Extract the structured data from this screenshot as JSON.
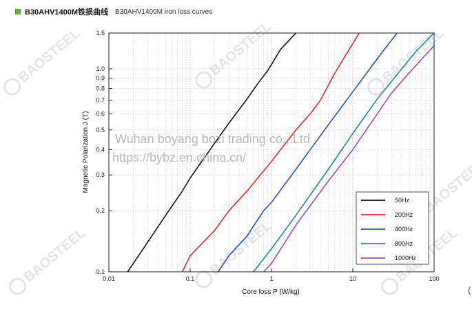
{
  "header": {
    "title": "B30AHV1400M铁损曲线",
    "subtitle": "B30AHV1400M iron loss curves",
    "accent_color": "#5cb531"
  },
  "watermark": {
    "brand": "BAOSTEEL",
    "line1": "Wuhan boyang bozi trading co., Ltd",
    "line2": "https://bybz.en.china.cn/"
  },
  "edge_text": "(",
  "chart_data": {
    "type": "line",
    "title": "",
    "xlabel": "Core  loss P (W/kg)",
    "ylabel": "Magnetic Polarization J (T)",
    "xscale": "log",
    "yscale": "log",
    "xlim": [
      0.01,
      100
    ],
    "ylim": [
      0.1,
      1.5
    ],
    "grid": true,
    "legend_position": "bottom-right",
    "x_ticks": [
      {
        "value": 0.01,
        "label": "0.01"
      },
      {
        "value": 0.1,
        "label": "0.1"
      },
      {
        "value": 1,
        "label": "1"
      },
      {
        "value": 10,
        "label": "10"
      },
      {
        "value": 100,
        "label": "100"
      }
    ],
    "y_ticks": [
      {
        "value": 0.1,
        "label": "0.1"
      },
      {
        "value": 0.2,
        "label": "0.2"
      },
      {
        "value": 0.3,
        "label": "0.3"
      },
      {
        "value": 0.4,
        "label": "0.4"
      },
      {
        "value": 0.5,
        "label": "0.5"
      },
      {
        "value": 0.6,
        "label": "0.6"
      },
      {
        "value": 0.7,
        "label": "0.7"
      },
      {
        "value": 0.8,
        "label": "0.8"
      },
      {
        "value": 0.9,
        "label": "0.9"
      },
      {
        "value": 1.0,
        "label": "1.0"
      },
      {
        "value": 1.5,
        "label": "1.5"
      }
    ],
    "series": [
      {
        "name": "50Hz",
        "color": "#111111",
        "x": [
          0.017,
          0.02,
          0.03,
          0.05,
          0.08,
          0.1,
          0.2,
          0.3,
          0.5,
          0.7,
          0.9,
          1.0,
          1.3,
          2.0
        ],
        "y": [
          0.1,
          0.11,
          0.14,
          0.19,
          0.25,
          0.29,
          0.43,
          0.54,
          0.71,
          0.86,
          0.98,
          1.05,
          1.25,
          1.5
        ]
      },
      {
        "name": "200Hz",
        "color": "#e32b2b",
        "x": [
          0.08,
          0.1,
          0.2,
          0.3,
          0.5,
          1.0,
          2.0,
          3.0,
          4.0,
          6.0,
          8.0,
          12.0
        ],
        "y": [
          0.1,
          0.12,
          0.16,
          0.2,
          0.25,
          0.35,
          0.5,
          0.6,
          0.7,
          0.95,
          1.15,
          1.5
        ]
      },
      {
        "name": "400Hz",
        "color": "#2a55b5",
        "x": [
          0.22,
          0.3,
          0.5,
          0.8,
          1.0,
          2.0,
          5.0,
          10.0,
          20.0,
          35.0
        ],
        "y": [
          0.1,
          0.12,
          0.15,
          0.2,
          0.22,
          0.32,
          0.53,
          0.77,
          1.12,
          1.5
        ]
      },
      {
        "name": "800Hz",
        "color": "#1f8c87",
        "x": [
          0.6,
          1.0,
          2.0,
          5.0,
          10.0,
          20.0,
          40.0,
          60.0,
          100.0
        ],
        "y": [
          0.1,
          0.13,
          0.19,
          0.32,
          0.48,
          0.71,
          1.0,
          1.22,
          1.5
        ]
      },
      {
        "name": "1000Hz",
        "color": "#a24bb5",
        "x": [
          0.8,
          1.0,
          2.0,
          5.0,
          10.0,
          20.0,
          30.0,
          50.0,
          100.0
        ],
        "y": [
          0.1,
          0.11,
          0.17,
          0.28,
          0.4,
          0.6,
          0.76,
          0.96,
          1.3
        ]
      }
    ]
  }
}
